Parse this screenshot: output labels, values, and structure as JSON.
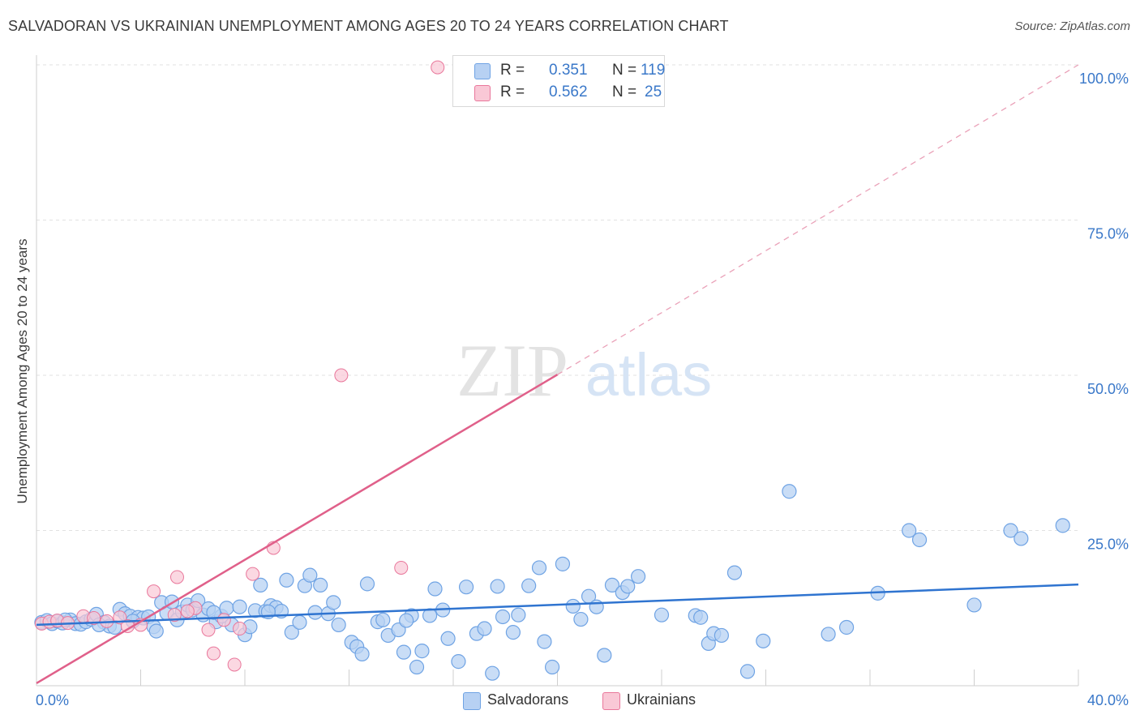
{
  "title": "SALVADORAN VS UKRAINIAN UNEMPLOYMENT AMONG AGES 20 TO 24 YEARS CORRELATION CHART",
  "source": "Source: ZipAtlas.com",
  "watermark": {
    "zip": "ZIP",
    "atlas": "atlas"
  },
  "legend": {
    "rows": [
      {
        "r_label": "R =",
        "r_value": "0.351",
        "n_label": "N =",
        "n_value": "119",
        "color": "#a9c9f2"
      },
      {
        "r_label": "R =",
        "r_value": "0.562",
        "n_label": "N =",
        "n_value": "25",
        "color": "#f6bccd"
      }
    ]
  },
  "bottom_legend": [
    {
      "label": "Salvadorans",
      "color": "#a9c9f2"
    },
    {
      "label": "Ukrainians",
      "color": "#f6bccd"
    }
  ],
  "chart_data": {
    "type": "scatter",
    "title": "SALVADORAN VS UKRAINIAN UNEMPLOYMENT AMONG AGES 20 TO 24 YEARS CORRELATION CHART",
    "xlabel": "",
    "ylabel": "Unemployment Among Ages 20 to 24 years",
    "xlim": [
      0,
      40
    ],
    "ylim": [
      0,
      100
    ],
    "x_tick_labels": [
      "0.0%",
      "40.0%"
    ],
    "y_tick_labels": [
      "100.0%",
      "75.0%",
      "50.0%",
      "25.0%"
    ],
    "y_ticks": [
      100,
      75,
      50,
      25
    ],
    "grid": true,
    "legend_position": "top-center",
    "series": [
      {
        "name": "Salvadorans",
        "color": "#6fa3e4",
        "fill": "#b7d1f3",
        "trend": {
          "x0": 0,
          "y0": 9.8,
          "x1": 40,
          "y1": 16.3
        },
        "points": [
          [
            0.2,
            10.2
          ],
          [
            0.4,
            10.5
          ],
          [
            0.6,
            10.0
          ],
          [
            0.8,
            10.4
          ],
          [
            1.0,
            10.1
          ],
          [
            1.3,
            10.6
          ],
          [
            1.5,
            10.0
          ],
          [
            1.7,
            9.9
          ],
          [
            1.9,
            10.3
          ],
          [
            2.1,
            10.7
          ],
          [
            2.3,
            11.5
          ],
          [
            2.6,
            10.2
          ],
          [
            2.8,
            9.6
          ],
          [
            3.0,
            9.4
          ],
          [
            3.2,
            12.3
          ],
          [
            3.4,
            11.6
          ],
          [
            3.6,
            11.2
          ],
          [
            3.9,
            11.0
          ],
          [
            4.1,
            10.9
          ],
          [
            4.3,
            11.1
          ],
          [
            4.5,
            9.5
          ],
          [
            4.6,
            8.8
          ],
          [
            4.8,
            13.4
          ],
          [
            5.0,
            11.7
          ],
          [
            5.2,
            13.5
          ],
          [
            5.4,
            10.6
          ],
          [
            5.6,
            11.9
          ],
          [
            5.8,
            13.0
          ],
          [
            6.0,
            12.2
          ],
          [
            6.2,
            13.7
          ],
          [
            6.4,
            11.4
          ],
          [
            6.6,
            12.4
          ],
          [
            6.9,
            10.3
          ],
          [
            7.1,
            11.2
          ],
          [
            7.3,
            12.5
          ],
          [
            7.5,
            9.8
          ],
          [
            7.8,
            12.7
          ],
          [
            8.0,
            8.2
          ],
          [
            8.2,
            9.5
          ],
          [
            8.4,
            12.1
          ],
          [
            8.6,
            16.2
          ],
          [
            8.8,
            12.0
          ],
          [
            9.0,
            12.9
          ],
          [
            9.2,
            12.6
          ],
          [
            9.4,
            12.0
          ],
          [
            9.6,
            17.0
          ],
          [
            9.8,
            8.6
          ],
          [
            10.1,
            10.2
          ],
          [
            10.3,
            16.1
          ],
          [
            10.5,
            17.8
          ],
          [
            10.7,
            11.8
          ],
          [
            10.9,
            16.2
          ],
          [
            11.2,
            11.6
          ],
          [
            11.4,
            13.4
          ],
          [
            11.6,
            9.8
          ],
          [
            12.1,
            7.0
          ],
          [
            12.3,
            6.3
          ],
          [
            12.5,
            5.1
          ],
          [
            12.7,
            16.4
          ],
          [
            13.1,
            10.3
          ],
          [
            13.3,
            10.6
          ],
          [
            13.5,
            8.1
          ],
          [
            13.9,
            9.0
          ],
          [
            14.1,
            5.4
          ],
          [
            14.4,
            11.3
          ],
          [
            14.6,
            3.0
          ],
          [
            14.8,
            5.6
          ],
          [
            15.1,
            11.3
          ],
          [
            15.3,
            15.6
          ],
          [
            15.6,
            12.2
          ],
          [
            15.8,
            7.6
          ],
          [
            16.2,
            3.9
          ],
          [
            16.5,
            15.9
          ],
          [
            16.9,
            8.4
          ],
          [
            17.2,
            9.2
          ],
          [
            17.5,
            2.0
          ],
          [
            17.7,
            16.0
          ],
          [
            17.9,
            11.1
          ],
          [
            18.3,
            8.6
          ],
          [
            18.5,
            11.4
          ],
          [
            18.9,
            16.1
          ],
          [
            19.3,
            19.0
          ],
          [
            19.5,
            7.1
          ],
          [
            19.8,
            3.0
          ],
          [
            20.2,
            19.6
          ],
          [
            20.6,
            12.8
          ],
          [
            21.2,
            14.4
          ],
          [
            21.5,
            12.7
          ],
          [
            21.8,
            4.9
          ],
          [
            22.1,
            16.2
          ],
          [
            22.5,
            15.0
          ],
          [
            22.7,
            16.0
          ],
          [
            23.1,
            17.6
          ],
          [
            25.3,
            11.3
          ],
          [
            25.5,
            11.0
          ],
          [
            25.8,
            6.8
          ],
          [
            26.0,
            8.4
          ],
          [
            26.3,
            8.1
          ],
          [
            26.8,
            18.2
          ],
          [
            27.3,
            2.3
          ],
          [
            27.9,
            7.2
          ],
          [
            28.9,
            31.3
          ],
          [
            30.4,
            8.3
          ],
          [
            31.1,
            9.4
          ],
          [
            32.3,
            14.9
          ],
          [
            33.5,
            25.0
          ],
          [
            33.9,
            23.5
          ],
          [
            36.0,
            13.0
          ],
          [
            37.4,
            25.0
          ],
          [
            37.8,
            23.7
          ],
          [
            39.4,
            25.8
          ],
          [
            1.1,
            10.6
          ],
          [
            2.4,
            9.8
          ],
          [
            3.7,
            10.4
          ],
          [
            6.8,
            11.8
          ],
          [
            8.9,
            11.9
          ],
          [
            14.2,
            10.5
          ],
          [
            20.9,
            10.7
          ],
          [
            24.0,
            11.4
          ]
        ]
      },
      {
        "name": "Ukrainians",
        "color": "#e9779b",
        "fill": "#f9c8d6",
        "trend": {
          "x0": 0,
          "y0": 0.4,
          "x1": 20,
          "y1": 50.1
        },
        "trend_dashed": {
          "x0": 20,
          "y0": 50.1,
          "x1": 40,
          "y1": 100
        },
        "points": [
          [
            0.2,
            10.0
          ],
          [
            0.5,
            10.3
          ],
          [
            0.8,
            10.5
          ],
          [
            1.2,
            10.1
          ],
          [
            1.8,
            11.2
          ],
          [
            2.2,
            10.9
          ],
          [
            2.7,
            10.4
          ],
          [
            3.2,
            11.0
          ],
          [
            3.5,
            9.6
          ],
          [
            4.0,
            9.8
          ],
          [
            4.5,
            15.2
          ],
          [
            5.3,
            11.4
          ],
          [
            5.4,
            17.5
          ],
          [
            6.1,
            12.5
          ],
          [
            6.6,
            9.0
          ],
          [
            6.8,
            5.2
          ],
          [
            7.6,
            3.4
          ],
          [
            7.8,
            9.2
          ],
          [
            8.3,
            18.0
          ],
          [
            9.1,
            22.2
          ],
          [
            11.7,
            50.0
          ],
          [
            14.0,
            19.0
          ],
          [
            15.4,
            99.6
          ],
          [
            5.8,
            12.0
          ],
          [
            7.2,
            10.6
          ]
        ]
      }
    ]
  }
}
